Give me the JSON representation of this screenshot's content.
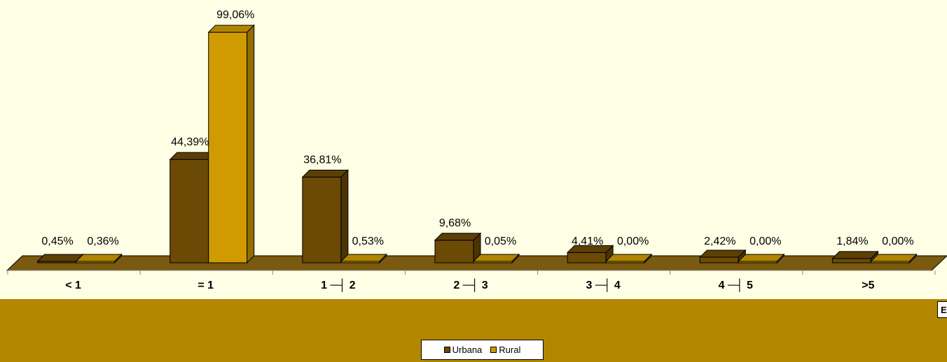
{
  "chart_data": {
    "type": "bar",
    "categories": [
      "< 1",
      "= 1",
      "1 ─┤ 2",
      "2 ─┤ 3",
      "3 ─┤ 4",
      "4 ─┤ 5",
      ">5"
    ],
    "series": [
      {
        "name": "Urbana",
        "values": [
          0.45,
          44.39,
          36.81,
          9.68,
          4.41,
          2.42,
          1.84
        ],
        "labels": [
          "0,45%",
          "44,39%",
          "36,81%",
          "9,68%",
          "4,41%",
          "2,42%",
          "1,84%"
        ],
        "color": "#6b4a06"
      },
      {
        "name": "Rural",
        "values": [
          0.36,
          99.06,
          0.53,
          0.05,
          0.0,
          0.0,
          0.0
        ],
        "labels": [
          "0,36%",
          "99,06%",
          "0,53%",
          "0,05%",
          "0,00%",
          "0,00%",
          "0,00%"
        ],
        "color": "#d09b00"
      }
    ],
    "ylim": [
      0,
      100
    ],
    "grid": false,
    "legend": "bottom-center",
    "style": "3d-column"
  },
  "legend": {
    "items": [
      {
        "label": "Urbana",
        "color": "#6b4a06"
      },
      {
        "label": "Rural",
        "color": "#d09b00"
      }
    ]
  },
  "corner_box": {
    "text": "E"
  },
  "colors": {
    "background": "#ffffe6",
    "floor": "#7a5a10",
    "band": "#b38600"
  }
}
